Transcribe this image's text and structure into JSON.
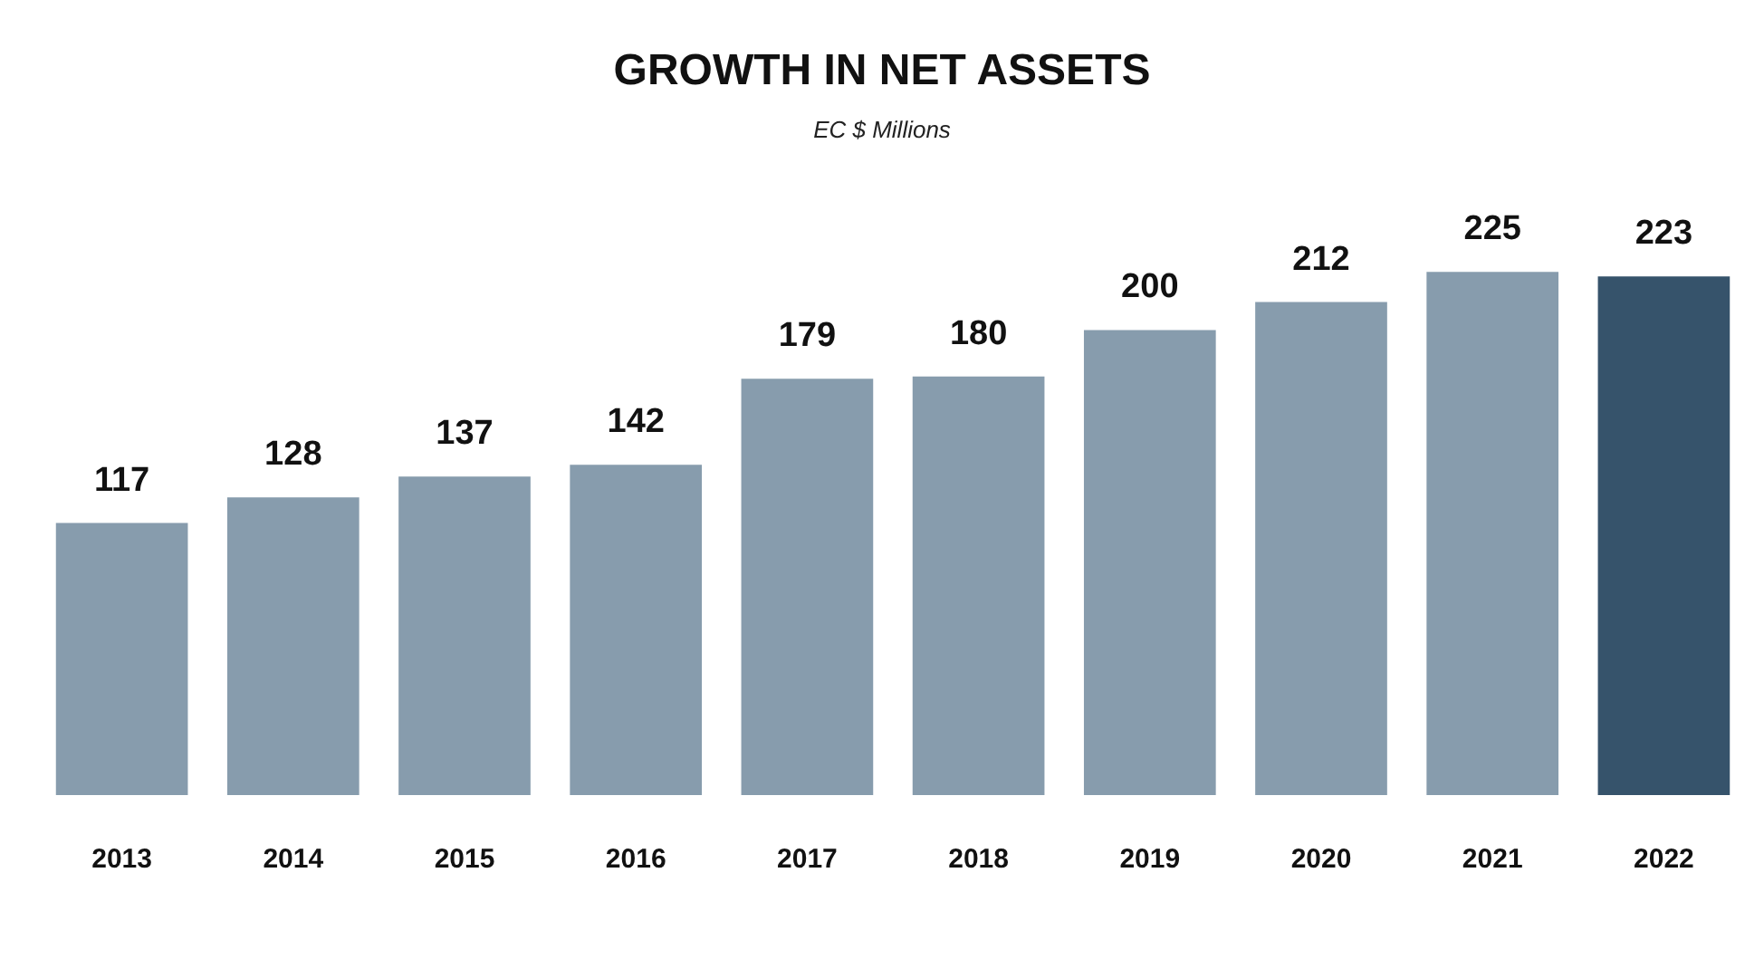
{
  "chart_data": {
    "type": "bar",
    "title": "GROWTH IN NET ASSETS",
    "subtitle": "EC $ Millions",
    "categories": [
      "2013",
      "2014",
      "2015",
      "2016",
      "2017",
      "2018",
      "2019",
      "2020",
      "2021",
      "2022"
    ],
    "values": [
      117,
      128,
      137,
      142,
      179,
      180,
      200,
      212,
      225,
      223
    ],
    "colors": [
      "#879cad",
      "#879cad",
      "#879cad",
      "#879cad",
      "#879cad",
      "#879cad",
      "#879cad",
      "#879cad",
      "#879cad",
      "#36536b"
    ],
    "data_labels": true
  }
}
